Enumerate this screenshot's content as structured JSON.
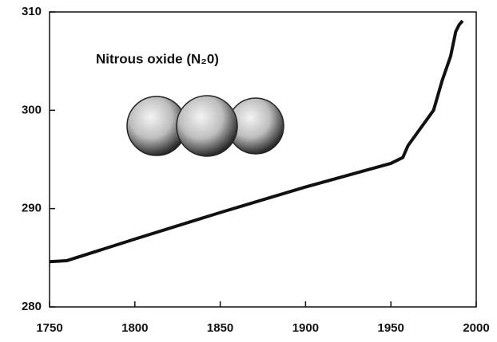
{
  "chart_data": {
    "type": "line",
    "annotation": "Nitrous oxide (N₂0)",
    "x": [
      1750,
      1760,
      1800,
      1850,
      1900,
      1950,
      1957,
      1960,
      1970,
      1975,
      1980,
      1985,
      1988,
      1990,
      1992
    ],
    "series": [
      {
        "color": "#111111",
        "values": [
          284.6,
          284.7,
          286.9,
          289.6,
          292.2,
          294.6,
          295.2,
          296.4,
          298.8,
          300.0,
          303.0,
          305.5,
          308.0,
          308.7,
          309.1
        ]
      }
    ],
    "xlim": [
      1750,
      2000
    ],
    "xticks": [
      1750,
      1800,
      1850,
      1900,
      1950,
      2000
    ],
    "ylim": [
      280,
      310
    ],
    "yticks": [
      280,
      290,
      300,
      310
    ]
  }
}
